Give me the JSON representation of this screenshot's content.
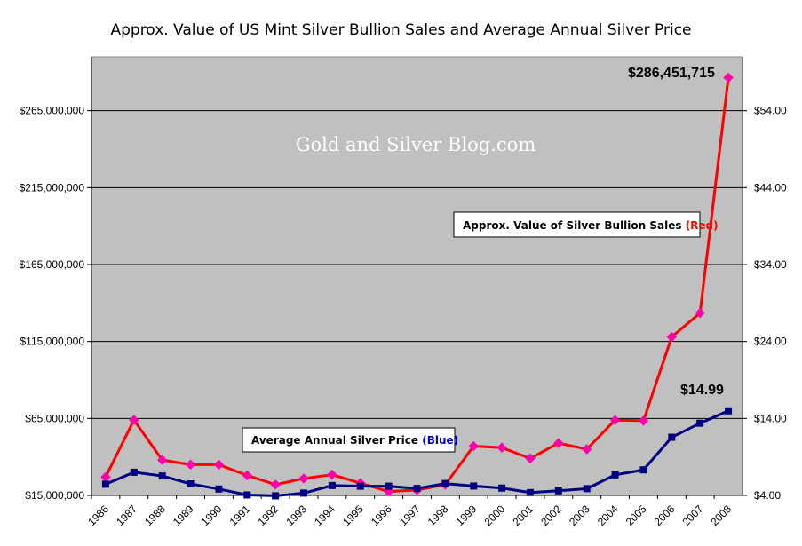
{
  "chart_data": {
    "type": "line",
    "title": "Approx. Value of US Mint Silver Bullion Sales and Average Annual Silver Price",
    "watermark": "Gold and Silver Blog.com",
    "categories": [
      "1986",
      "1987",
      "1988",
      "1989",
      "1990",
      "1991",
      "1992",
      "1993",
      "1994",
      "1995",
      "1996",
      "1997",
      "1998",
      "1999",
      "2000",
      "2001",
      "2002",
      "2003",
      "2004",
      "2005",
      "2006",
      "2007",
      "2008"
    ],
    "y_left": {
      "ticks": [
        15000000,
        65000000,
        115000000,
        165000000,
        215000000,
        265000000
      ],
      "tick_labels": [
        "$15,000,000",
        "$65,000,000",
        "$115,000,000",
        "$165,000,000",
        "$215,000,000",
        "$265,000,000"
      ],
      "ylim": [
        15000000,
        300000000
      ]
    },
    "y_right": {
      "ticks": [
        4,
        14,
        24,
        34,
        44,
        54
      ],
      "tick_labels": [
        "$4.00",
        "$14.00",
        "$24.00",
        "$34.00",
        "$44.00",
        "$54.00"
      ],
      "ylim": [
        4,
        61
      ]
    },
    "series": [
      {
        "name": "Approx. Value of Silver Bullion Sales",
        "color": "#ff0000",
        "marker_color": "#ff00aa",
        "marker": "diamond",
        "axis": "left",
        "values": [
          27000000,
          64000000,
          38000000,
          35000000,
          35000000,
          28000000,
          22000000,
          26000000,
          28500000,
          23000000,
          17500000,
          18500000,
          22000000,
          47000000,
          46000000,
          39000000,
          49000000,
          45000000,
          64000000,
          63500000,
          118000000,
          133500000,
          286451715
        ]
      },
      {
        "name": "Average Annual Silver Price",
        "color": "#000080",
        "marker_color": "#000080",
        "marker": "square",
        "axis": "right",
        "values": [
          5.46,
          7.01,
          6.53,
          5.5,
          4.83,
          4.06,
          3.95,
          4.3,
          5.29,
          5.2,
          5.2,
          4.9,
          5.54,
          5.22,
          4.95,
          4.37,
          4.6,
          4.88,
          6.67,
          7.32,
          11.55,
          13.38,
          14.99
        ]
      }
    ],
    "annotations": {
      "red_label": "$286,451,715",
      "blue_label": "$14.99"
    },
    "legend_boxes": {
      "red": {
        "text": "Approx. Value of Silver Bullion Sales ",
        "suffix": "(Red)",
        "suffix_color": "#ff0000"
      },
      "blue": {
        "text": "Average Annual Silver Price ",
        "suffix": "(Blue)",
        "suffix_color": "#0000cc"
      }
    },
    "grid": true,
    "plot_background": "#c0c0c0"
  }
}
